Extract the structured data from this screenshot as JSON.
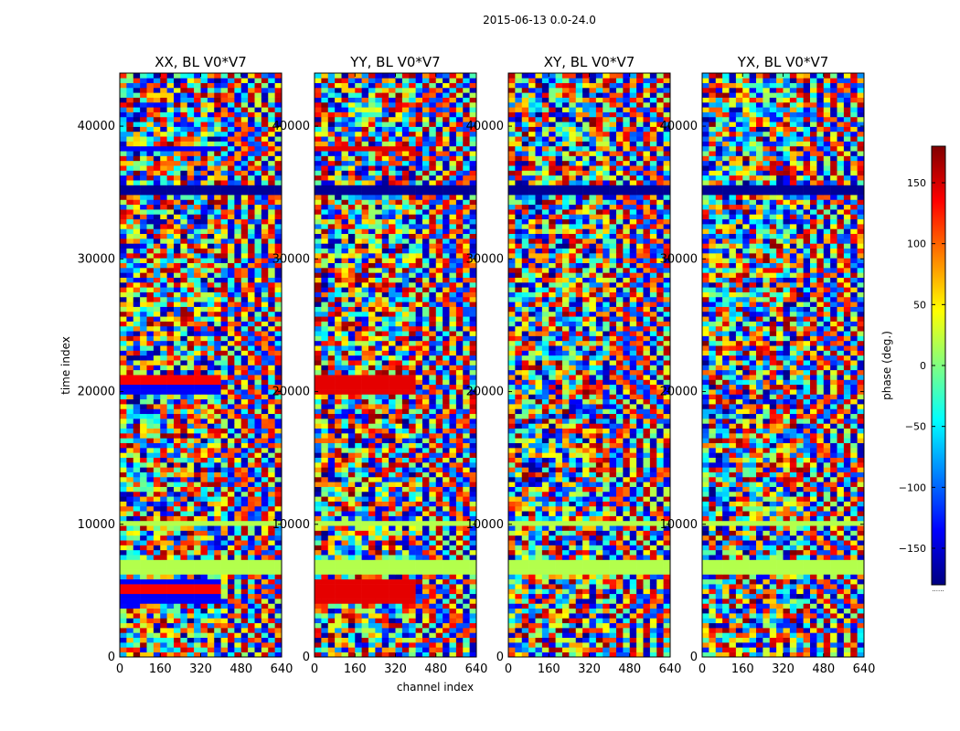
{
  "chart_data": {
    "type": "heatmap",
    "title": "2015-06-13 0.0-24.0",
    "xlabel": "channel index",
    "ylabel": "time index",
    "xlim": [
      0,
      640
    ],
    "ylim": [
      0,
      44000
    ],
    "xticks": [
      0,
      160,
      320,
      480,
      640
    ],
    "yticks": [
      0,
      10000,
      20000,
      30000,
      40000
    ],
    "colorbar": {
      "label": "phase (deg.)",
      "range": [
        -180,
        180
      ],
      "ticks": [
        -150,
        -100,
        -50,
        0,
        50,
        100,
        150
      ],
      "ticklabels": [
        "−150",
        "−100",
        "−50",
        "0",
        "50",
        "100",
        "150"
      ],
      "colormap": "jet",
      "colors": [
        "#00007f",
        "#0000ff",
        "#007fff",
        "#00ffff",
        "#7fff7f",
        "#ffff00",
        "#ff7f00",
        "#ff0000",
        "#7f0000"
      ],
      "footnote": "......"
    },
    "panels": [
      {
        "title": "XX, BL V0*V7",
        "polarization": "XX"
      },
      {
        "title": "YY, BL V0*V7",
        "polarization": "YY"
      },
      {
        "title": "XY, BL V0*V7",
        "polarization": "XY"
      },
      {
        "title": "YX, BL V0*V7",
        "polarization": "YX"
      }
    ],
    "description_values": {
      "channel_split_at": 384,
      "flagged_time_bands": [
        [
          35000,
          35600
        ],
        [
          9900,
          10300
        ],
        [
          6300,
          7400
        ]
      ],
      "strong_phase_bands_parallel": [
        [
          42000,
          42300
        ],
        [
          38300,
          38600
        ],
        [
          35000,
          35600
        ],
        [
          19800,
          21400
        ],
        [
          4000,
          5800
        ]
      ]
    }
  }
}
